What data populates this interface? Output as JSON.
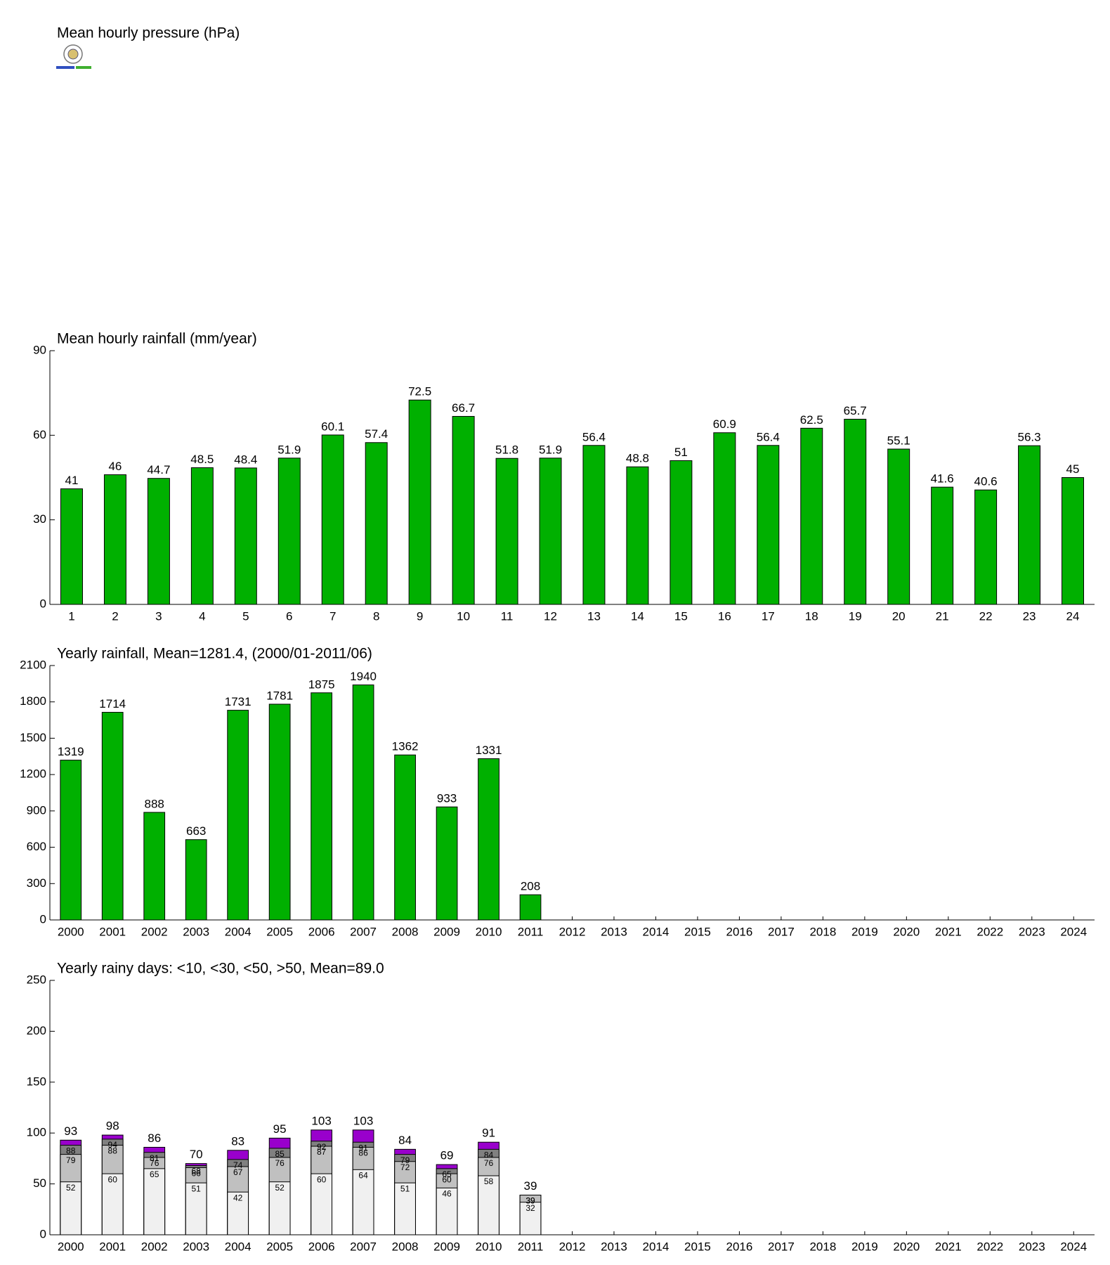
{
  "chart_data": [
    {
      "title": "Mean hourly pressure (hPa)"
    },
    {
      "type": "bar",
      "title": "Mean hourly rainfall (mm/year)",
      "categories": [
        "1",
        "2",
        "3",
        "4",
        "5",
        "6",
        "7",
        "8",
        "9",
        "10",
        "11",
        "12",
        "13",
        "14",
        "15",
        "16",
        "17",
        "18",
        "19",
        "20",
        "21",
        "22",
        "23",
        "24"
      ],
      "values": [
        41,
        46,
        44.7,
        48.5,
        48.4,
        51.9,
        60.1,
        57.4,
        72.5,
        66.7,
        51.8,
        51.9,
        56.4,
        48.8,
        51,
        60.9,
        56.4,
        62.5,
        65.7,
        55.1,
        41.6,
        40.6,
        56.3,
        45
      ],
      "color": "#00b000",
      "ylim": [
        0,
        90
      ],
      "yticks": [
        0,
        30,
        60,
        90
      ]
    },
    {
      "type": "bar",
      "title": "Yearly rainfall, Mean=1281.4, (2000/01-2011/06)",
      "categories": [
        "2000",
        "2001",
        "2002",
        "2003",
        "2004",
        "2005",
        "2006",
        "2007",
        "2008",
        "2009",
        "2010",
        "2011",
        "2012",
        "2013",
        "2014",
        "2015",
        "2016",
        "2017",
        "2018",
        "2019",
        "2020",
        "2021",
        "2022",
        "2023",
        "2024"
      ],
      "values": [
        1319,
        1714,
        888,
        663,
        1731,
        1781,
        1875,
        1940,
        1362,
        933,
        1331,
        208,
        null,
        null,
        null,
        null,
        null,
        null,
        null,
        null,
        null,
        null,
        null,
        null,
        null
      ],
      "color": "#00b000",
      "ylim": [
        0,
        2100
      ],
      "yticks": [
        0,
        300,
        600,
        900,
        1200,
        1500,
        1800,
        2100
      ]
    },
    {
      "type": "bar",
      "barmode": "overlay",
      "title": "Yearly rainy days: <10, <30, <50, >50, Mean=89.0",
      "categories": [
        "2000",
        "2001",
        "2002",
        "2003",
        "2004",
        "2005",
        "2006",
        "2007",
        "2008",
        "2009",
        "2010",
        "2011",
        "2012",
        "2013",
        "2014",
        "2015",
        "2016",
        "2017",
        "2018",
        "2019",
        "2020",
        "2021",
        "2022",
        "2023",
        "2024"
      ],
      "series": [
        {
          "color": "#f0f0f0",
          "values": [
            52,
            60,
            65,
            51,
            42,
            52,
            60,
            64,
            51,
            46,
            58,
            32,
            null,
            null,
            null,
            null,
            null,
            null,
            null,
            null,
            null,
            null,
            null,
            null,
            null
          ]
        },
        {
          "color": "#c0c0c0",
          "values": [
            79,
            88,
            76,
            66,
            67,
            76,
            87,
            86,
            72,
            60,
            76,
            39,
            null,
            null,
            null,
            null,
            null,
            null,
            null,
            null,
            null,
            null,
            null,
            null,
            null
          ]
        },
        {
          "color": "#808080",
          "values": [
            88,
            94,
            81,
            68,
            74,
            85,
            92,
            91,
            79,
            65,
            84,
            39,
            null,
            null,
            null,
            null,
            null,
            null,
            null,
            null,
            null,
            null,
            null,
            null,
            null
          ]
        },
        {
          "color": "#9900cc",
          "values": [
            93,
            98,
            86,
            70,
            83,
            95,
            103,
            103,
            84,
            69,
            91,
            39,
            null,
            null,
            null,
            null,
            null,
            null,
            null,
            null,
            null,
            null,
            null,
            null,
            null
          ]
        }
      ],
      "ylim": [
        0,
        250
      ],
      "yticks": [
        0,
        50,
        100,
        150,
        200,
        250
      ]
    }
  ]
}
